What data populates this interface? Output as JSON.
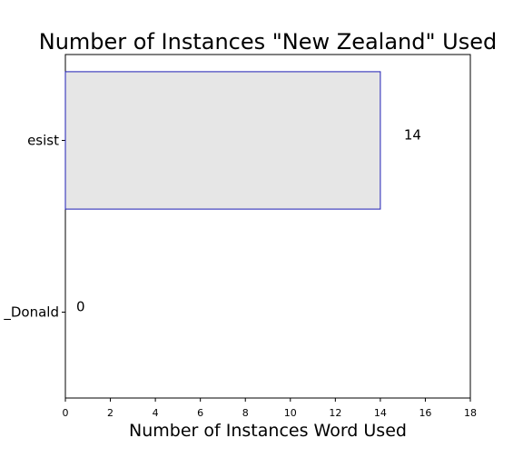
{
  "chart_data": {
    "type": "bar",
    "orientation": "horizontal",
    "title": "Number of Instances \"New Zealand\" Used",
    "xlabel": "Number of Instances Word Used",
    "ylabel": "",
    "categories": [
      "esist",
      "_Donald"
    ],
    "values": [
      14,
      0
    ],
    "data_labels": [
      "14",
      "0"
    ],
    "xlim": [
      0,
      18
    ],
    "xticks": [
      0,
      2,
      4,
      6,
      8,
      10,
      12,
      14,
      16,
      18
    ],
    "grid": false,
    "colors": {
      "bar_fill": "#e6e6e6",
      "bar_edge": "#1f1fb4",
      "axis": "#000000"
    }
  }
}
